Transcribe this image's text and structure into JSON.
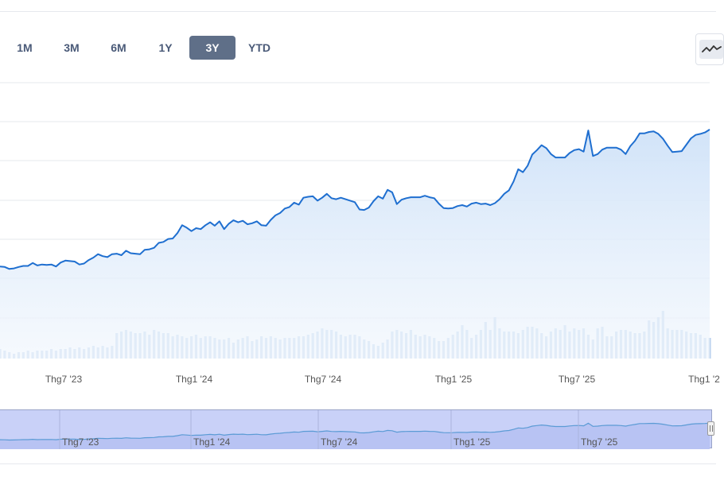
{
  "toolbar": {
    "range_buttons": [
      "1M",
      "3M",
      "6M",
      "1Y",
      "3Y",
      "YTD"
    ],
    "active_range": "3Y",
    "chart_type_icon": "line-chart-icon"
  },
  "colors": {
    "line": "#1f6fd0",
    "area_top": "#cfe2f8",
    "area_bottom": "#f2f7fd",
    "volume": "#bcd3ee",
    "navigator_bg": "#c9d1f8",
    "navigator_line": "#5b9bd5",
    "grid": "#e6e8ee"
  },
  "chart_data": {
    "type": "line",
    "x_ticks": [
      "Thg7 '23",
      "Thg1 '24",
      "Thg7 '24",
      "Thg1 '25",
      "Thg7 '25",
      "Thg1 '2"
    ],
    "grid": true,
    "price_series": {
      "x": [
        0,
        1,
        2,
        3,
        4,
        5,
        6,
        7,
        8,
        9,
        10,
        11,
        12,
        13,
        14,
        15,
        16,
        17,
        18,
        19,
        20,
        21,
        22,
        23,
        24,
        25,
        26,
        27,
        28,
        29,
        30,
        31,
        32,
        33,
        34,
        35,
        36,
        37,
        38,
        39,
        40,
        41,
        42,
        43,
        44,
        45,
        46,
        47,
        48,
        49,
        50,
        51,
        52,
        53,
        54,
        55,
        56,
        57,
        58,
        59,
        60,
        61,
        62,
        63,
        64,
        65,
        66,
        67,
        68,
        69,
        70,
        71,
        72,
        73,
        74,
        75,
        76,
        77,
        78,
        79,
        80,
        81,
        82,
        83,
        84,
        85,
        86,
        87,
        88,
        89,
        90,
        91,
        92,
        93,
        94,
        95,
        96,
        97,
        98,
        99,
        100,
        101,
        102,
        103,
        104,
        105,
        106,
        107,
        108,
        109,
        110,
        111,
        112,
        113,
        114,
        115,
        116,
        117,
        118,
        119,
        120,
        121,
        122,
        123,
        124,
        125,
        126,
        127,
        128,
        129,
        130,
        131,
        132,
        133,
        134,
        135,
        136,
        137,
        138,
        139,
        140,
        141,
        142,
        143,
        144,
        145,
        146,
        147,
        148,
        149,
        150,
        151,
        152
      ],
      "values": [
        10.5,
        10.4,
        10.0,
        10.1,
        10.4,
        10.6,
        10.6,
        11.2,
        10.7,
        10.9,
        10.8,
        10.9,
        10.5,
        11.3,
        11.7,
        11.6,
        11.5,
        10.9,
        11.1,
        11.8,
        12.3,
        13.0,
        12.6,
        12.4,
        13.0,
        13.1,
        12.8,
        13.7,
        13.2,
        13.1,
        13.0,
        13.9,
        14.0,
        14.3,
        15.3,
        15.5,
        16.1,
        16.2,
        17.3,
        18.9,
        18.4,
        17.7,
        18.3,
        18.1,
        18.9,
        19.5,
        18.8,
        19.7,
        18.1,
        19.2,
        19.9,
        19.5,
        19.8,
        19.1,
        19.3,
        19.7,
        18.9,
        18.8,
        20.0,
        20.9,
        21.4,
        22.3,
        22.6,
        23.5,
        23.1,
        24.5,
        24.7,
        24.8,
        23.9,
        24.5,
        25.3,
        24.4,
        24.2,
        24.5,
        24.2,
        23.9,
        23.6,
        22.1,
        22.0,
        22.5,
        23.8,
        24.8,
        24.3,
        26.1,
        25.6,
        23.2,
        24.1,
        24.4,
        24.6,
        24.6,
        24.6,
        24.9,
        24.6,
        24.4,
        23.3,
        22.4,
        22.3,
        22.4,
        22.8,
        23.0,
        22.7,
        23.3,
        23.5,
        23.2,
        23.3,
        23.0,
        23.4,
        24.2,
        25.3,
        26.0,
        27.8,
        30.3,
        29.7,
        31.0,
        33.3,
        34.2,
        35.2,
        34.6,
        33.4,
        32.7,
        32.7,
        32.7,
        33.6,
        34.2,
        34.4,
        33.9,
        38.2,
        33.0,
        33.4,
        34.3,
        34.7,
        34.7,
        34.7,
        34.3,
        33.4,
        35.0,
        36.1,
        37.6,
        37.6,
        37.9,
        38.0,
        37.5,
        36.5,
        35.1,
        33.8,
        33.9,
        34.0,
        35.3,
        36.6,
        37.3,
        37.5,
        37.8,
        38.4
      ]
    },
    "volume_series": {
      "values": [
        6,
        5,
        4,
        3,
        4,
        4,
        5,
        4,
        5,
        5,
        5,
        6,
        5,
        6,
        6,
        7,
        6,
        7,
        6,
        7,
        8,
        7,
        8,
        7,
        8,
        16,
        17,
        18,
        17,
        16,
        16,
        17,
        15,
        18,
        17,
        16,
        16,
        14,
        15,
        14,
        13,
        14,
        15,
        13,
        14,
        14,
        13,
        12,
        12,
        13,
        10,
        12,
        13,
        14,
        11,
        12,
        14,
        13,
        14,
        13,
        12,
        13,
        13,
        13,
        14,
        14,
        15,
        16,
        17,
        19,
        18,
        18,
        17,
        15,
        14,
        15,
        15,
        14,
        12,
        11,
        9,
        8,
        10,
        12,
        17,
        18,
        17,
        16,
        18,
        15,
        14,
        15,
        14,
        13,
        11,
        11,
        13,
        15,
        17,
        21,
        18,
        13,
        15,
        18,
        23,
        18,
        26,
        19,
        17,
        17,
        17,
        16,
        18,
        20,
        20,
        19,
        16,
        14,
        17,
        19,
        18,
        21,
        17,
        19,
        18,
        19,
        15,
        12,
        19,
        20,
        14,
        14,
        17,
        18,
        18,
        17,
        16,
        16,
        17,
        24,
        23,
        26,
        30,
        19,
        18,
        18,
        18,
        17,
        16,
        16,
        15,
        13,
        13
      ]
    }
  }
}
